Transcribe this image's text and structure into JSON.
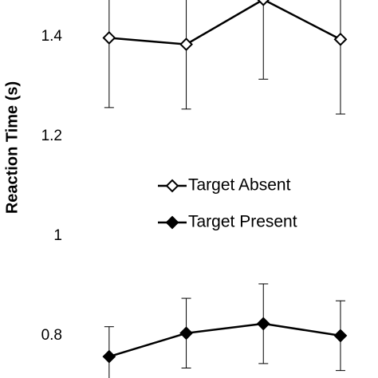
{
  "chart_data": {
    "type": "line",
    "y_label": "Reaction Time (s)",
    "categories": [
      null,
      null,
      null,
      null
    ],
    "ylim": [
      0.715,
      1.474
    ],
    "yticks": [
      0.8,
      1,
      1.2,
      1.4
    ],
    "series": [
      {
        "name": "Target Absent",
        "color": "#000000",
        "marker": "open-diamond",
        "values": [
          1.398,
          1.385,
          1.475,
          1.395
        ],
        "errors": [
          0.14,
          0.13,
          0.16,
          0.15
        ]
      },
      {
        "name": "Target Present",
        "color": "#000000",
        "marker": "filled-diamond",
        "values": [
          0.758,
          0.805,
          0.824,
          0.8
        ],
        "errors": [
          0.06,
          0.07,
          0.08,
          0.07
        ]
      }
    ]
  }
}
